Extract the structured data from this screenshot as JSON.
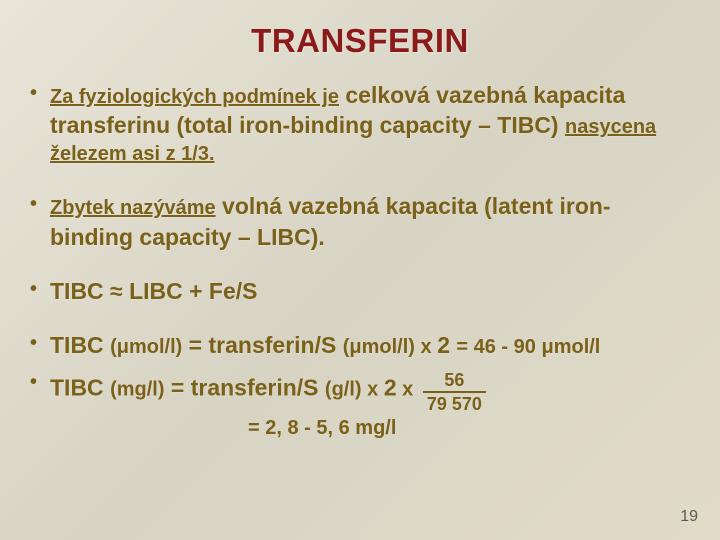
{
  "title": "TRANSFERIN",
  "bullets": {
    "b1_prefix": "Za fyziologických podmínek je",
    "b1_mid": " celková vazebná kapacita transferinu (total iron-binding capacity – TIBC) ",
    "b1_suffix": "nasycena železem asi z 1/3.",
    "b2_prefix": "Zbytek nazýváme",
    "b2_rest": " volná vazebná kapacita (latent iron-binding capacity – LIBC).",
    "b3": "TIBC ≈ LIBC + Fe/S",
    "b4_a": "TIBC ",
    "b4_b": "(μmol/l)",
    "b4_c": " = transferin/S ",
    "b4_d": "(μmol/l)",
    "b4_e": " x ",
    "b4_f": "2 ",
    "b4_g": " = 46 - 90 ",
    "b4_h": "μmol/l",
    "b5_a": "TIBC ",
    "b5_b": "(mg/l)",
    "b5_c": " = transferin/S ",
    "b5_d": "(g/l)",
    "b5_e": " x ",
    "b5_f": "2",
    "b5_g": " x ",
    "frac_num": "56",
    "frac_den": "79 570",
    "sub": "= 2, 8 - 5, 6 mg/l"
  },
  "pagenum": "19",
  "colors": {
    "title": "#8b1a1a",
    "body": "#7a6018",
    "bg_from": "#e8e4d8",
    "bg_to": "#e0dcc8"
  },
  "typography": {
    "title_fontsize": 33,
    "body_fontsize": 20,
    "larger_fontsize": 23
  }
}
